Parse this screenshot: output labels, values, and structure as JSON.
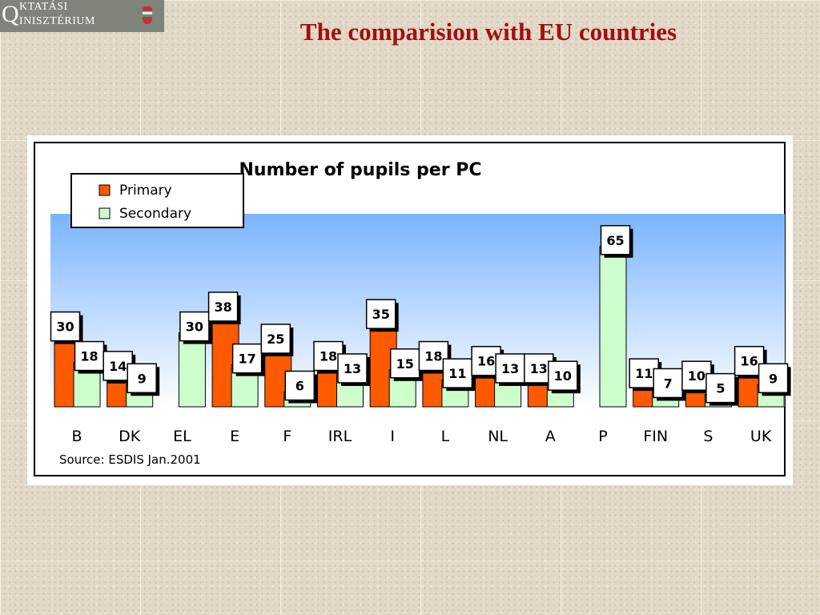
{
  "logo": {
    "initial": "Q",
    "line1": "KTATÁSI",
    "line2": "INISZTÉRIUM"
  },
  "page": {
    "title": "The comparision with EU countries"
  },
  "chart_data": {
    "type": "bar",
    "title": "Number of pupils per PC",
    "source": "Source: ESDIS Jan.2001",
    "categories": [
      "B",
      "DK",
      "EL",
      "E",
      "F",
      "IRL",
      "I",
      "L",
      "NL",
      "A",
      "P",
      "FIN",
      "S",
      "UK"
    ],
    "series": [
      {
        "name": "Primary",
        "values": [
          30,
          14,
          null,
          38,
          25,
          18,
          35,
          18,
          16,
          13,
          null,
          11,
          10,
          16
        ]
      },
      {
        "name": "Secondary",
        "values": [
          18,
          9,
          30,
          17,
          6,
          13,
          15,
          11,
          13,
          10,
          65,
          7,
          5,
          9
        ]
      }
    ],
    "ylim": [
      0,
      70
    ],
    "legend": "top-left",
    "grid": false,
    "colors": {
      "primary": "#ff5a00",
      "secondary": "#ccffcc",
      "sky_top": "#7ab4ff",
      "sky_bottom": "#ffffff"
    }
  }
}
